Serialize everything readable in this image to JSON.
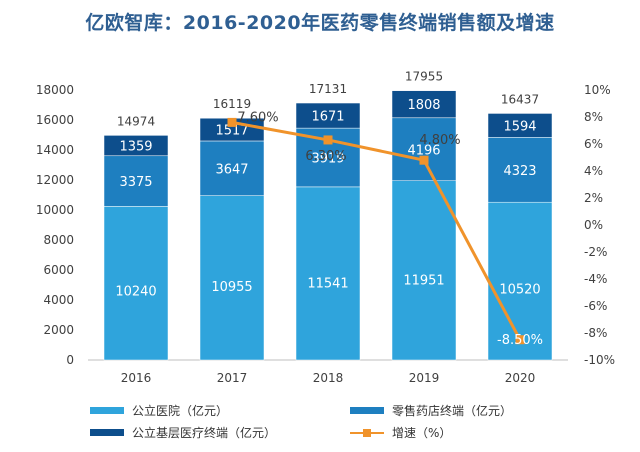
{
  "chart_data": {
    "type": "bar",
    "title": "亿欧智库：2016-2020年医药零售终端销售额及增速",
    "categories": [
      "2016",
      "2017",
      "2018",
      "2019",
      "2020"
    ],
    "series": [
      {
        "name": "公立医院（亿元）",
        "kind": "bar",
        "color": "#2fa4dc",
        "values": [
          10240,
          10955,
          11541,
          11951,
          10520
        ]
      },
      {
        "name": "零售药店终端（亿元）",
        "kind": "bar",
        "color": "#1e7fc0",
        "values": [
          3375,
          3647,
          3919,
          4196,
          4323
        ]
      },
      {
        "name": "公立基层医疗终端（亿元）",
        "kind": "bar",
        "color": "#0d4e8c",
        "values": [
          1359,
          1517,
          1671,
          1808,
          1594
        ]
      },
      {
        "name": "增速（%）",
        "kind": "line",
        "axis": "right",
        "color": "#f0932b",
        "values": [
          null,
          7.6,
          6.3,
          4.8,
          -8.5
        ],
        "labels": [
          "",
          "7.60%",
          "6.30%",
          "4.80%",
          "-8.50%"
        ]
      }
    ],
    "totals": [
      14974,
      16119,
      17131,
      17955,
      16437
    ],
    "y_left": {
      "min": 0,
      "max": 18000,
      "step": 2000,
      "ticks": [
        "0",
        "2000",
        "4000",
        "6000",
        "8000",
        "10000",
        "12000",
        "14000",
        "16000",
        "18000"
      ]
    },
    "y_right": {
      "min": -10,
      "max": 10,
      "step": 2,
      "ticks": [
        "-10%",
        "-8%",
        "-6%",
        "-4%",
        "-2%",
        "0%",
        "2%",
        "4%",
        "6%",
        "8%",
        "10%"
      ]
    },
    "grid": false,
    "legend_position": "bottom"
  }
}
